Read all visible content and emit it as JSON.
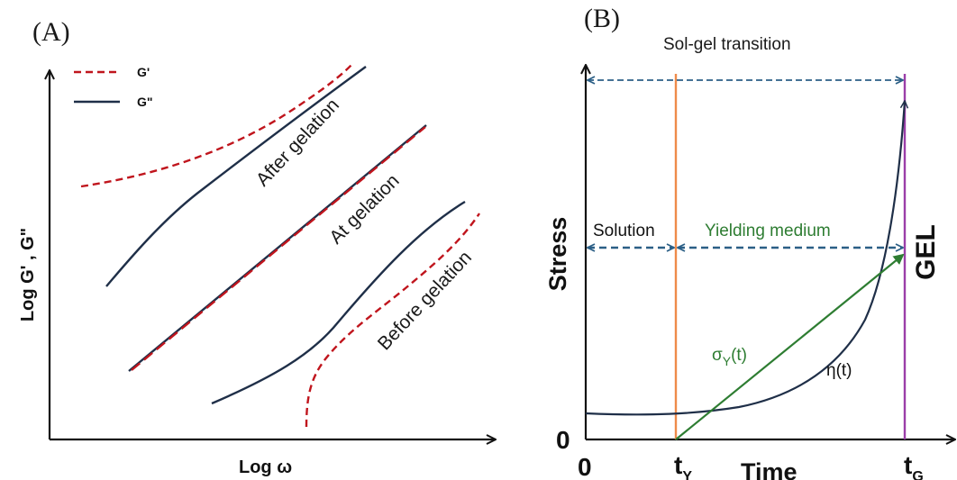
{
  "colors": {
    "g_prime": "#c0151d",
    "g_double_prime": "#1f2f48",
    "axis": "#111111",
    "arrow": "#2b5f86",
    "t_y_line": "#ee8a4a",
    "gel_line": "#9b3ea8",
    "sigma": "#2e7d32",
    "eta": "#1f2f48"
  },
  "panel_a": {
    "label": "(A)",
    "legend": {
      "g_prime": "G'",
      "g_double_prime": "G\""
    },
    "curves": {
      "after": "After gelation",
      "at": "At gelation",
      "before": "Before gelation"
    },
    "x_axis_label": "Log ω",
    "y_axis_label": "Log G' , G\""
  },
  "panel_b": {
    "label": "(B)",
    "title": "Sol-gel transition",
    "solution": "Solution",
    "yielding": "Yielding medium",
    "gel": "GEL",
    "sigma_label": "σ",
    "sigma_sub": "Y",
    "sigma_suffix": "(t)",
    "eta_label": "η(t)",
    "x_axis_label": "Time",
    "y_axis_label": "Stress",
    "origin_x": "0",
    "origin_y": "0",
    "t_y_main": "t",
    "t_y_sub": "Y",
    "t_g_main": "t",
    "t_g_sub": "G"
  }
}
